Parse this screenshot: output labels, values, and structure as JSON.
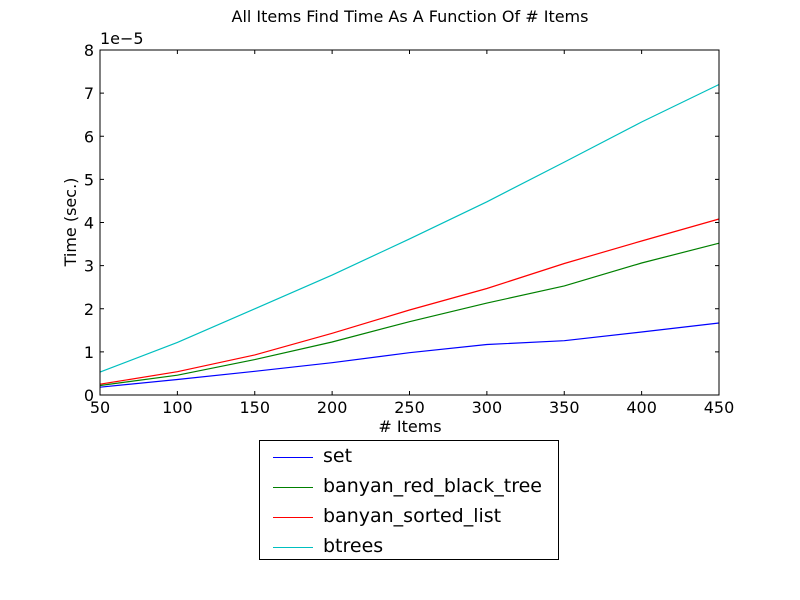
{
  "chart_data": {
    "type": "line",
    "title": "All Items Find Time As A Function Of # Items",
    "xlabel": "# Items",
    "ylabel": "Time (sec.)",
    "y_offset_label": "1e−5",
    "y_scale": 1e-05,
    "xlim": [
      50,
      450
    ],
    "ylim": [
      0,
      8
    ],
    "x_ticks": [
      50,
      100,
      150,
      200,
      250,
      300,
      350,
      400,
      450
    ],
    "y_ticks": [
      0,
      1,
      2,
      3,
      4,
      5,
      6,
      7,
      8
    ],
    "grid": false,
    "legend_position": "below-plot",
    "x": [
      50,
      100,
      150,
      200,
      250,
      300,
      350,
      400,
      450
    ],
    "series": [
      {
        "name": "set",
        "color": "#0000ff",
        "values": [
          0.18,
          0.36,
          0.55,
          0.75,
          0.98,
          1.17,
          1.26,
          1.46,
          1.67
        ]
      },
      {
        "name": "banyan_red_black_tree",
        "color": "#008000",
        "values": [
          0.22,
          0.46,
          0.82,
          1.23,
          1.7,
          2.13,
          2.53,
          3.06,
          3.52
        ]
      },
      {
        "name": "banyan_sorted_list",
        "color": "#ff0000",
        "values": [
          0.25,
          0.54,
          0.93,
          1.43,
          1.97,
          2.47,
          3.05,
          3.57,
          4.08
        ]
      },
      {
        "name": "btrees",
        "color": "#00bfbf",
        "values": [
          0.53,
          1.22,
          2.0,
          2.78,
          3.62,
          4.48,
          5.4,
          6.33,
          7.2
        ]
      }
    ]
  }
}
